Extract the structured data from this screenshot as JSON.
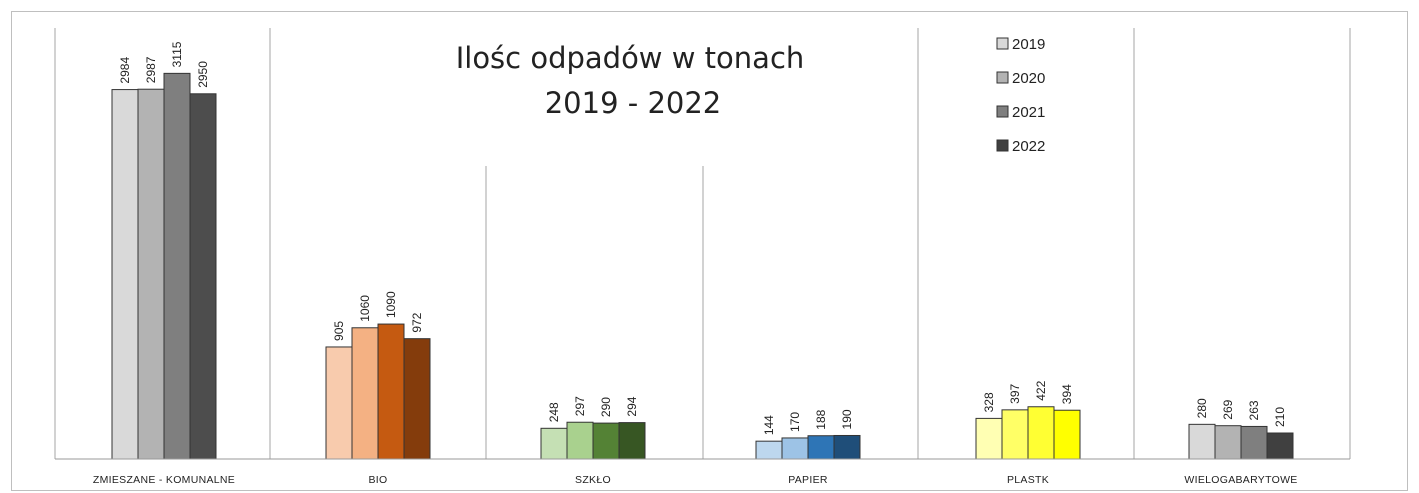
{
  "chart_data": {
    "type": "bar",
    "title": "Ilośc odpadów w tonach",
    "subtitle": "2019 - 2022",
    "xlabel": "",
    "ylabel": "",
    "ylim": [
      0,
      3300
    ],
    "grid": false,
    "legend_position": "top-center",
    "categories": [
      "ZMIESZANE - KOMUNALNE",
      "BIO",
      "SZKŁO",
      "PAPIER",
      "PLASTK",
      "WIELOGABARYTOWE"
    ],
    "series": [
      {
        "name": "2019",
        "values": [
          2984,
          905,
          248,
          144,
          328,
          280
        ],
        "legend_color": "#d9d9d9"
      },
      {
        "name": "2020",
        "values": [
          2987,
          1060,
          297,
          170,
          397,
          269
        ],
        "legend_color": "#b3b3b3"
      },
      {
        "name": "2021",
        "values": [
          3115,
          1090,
          290,
          188,
          422,
          263
        ],
        "legend_color": "#7f7f7f"
      },
      {
        "name": "2022",
        "values": [
          2950,
          972,
          294,
          190,
          394,
          210
        ],
        "legend_color": "#404040"
      }
    ],
    "bar_colors": [
      [
        "#d9d9d9",
        "#b3b3b3",
        "#7f7f7f",
        "#4d4d4d"
      ],
      [
        "#f8cbad",
        "#f4b183",
        "#c55a11",
        "#843c0c"
      ],
      [
        "#c5e0b4",
        "#a9d18e",
        "#548235",
        "#375623"
      ],
      [
        "#bdd7ee",
        "#9dc3e6",
        "#2e75b6",
        "#1f4e79"
      ],
      [
        "#ffffb3",
        "#ffff66",
        "#ffff33",
        "#ffff00"
      ],
      [
        "#d9d9d9",
        "#b3b3b3",
        "#7f7f7f",
        "#404040"
      ]
    ]
  }
}
